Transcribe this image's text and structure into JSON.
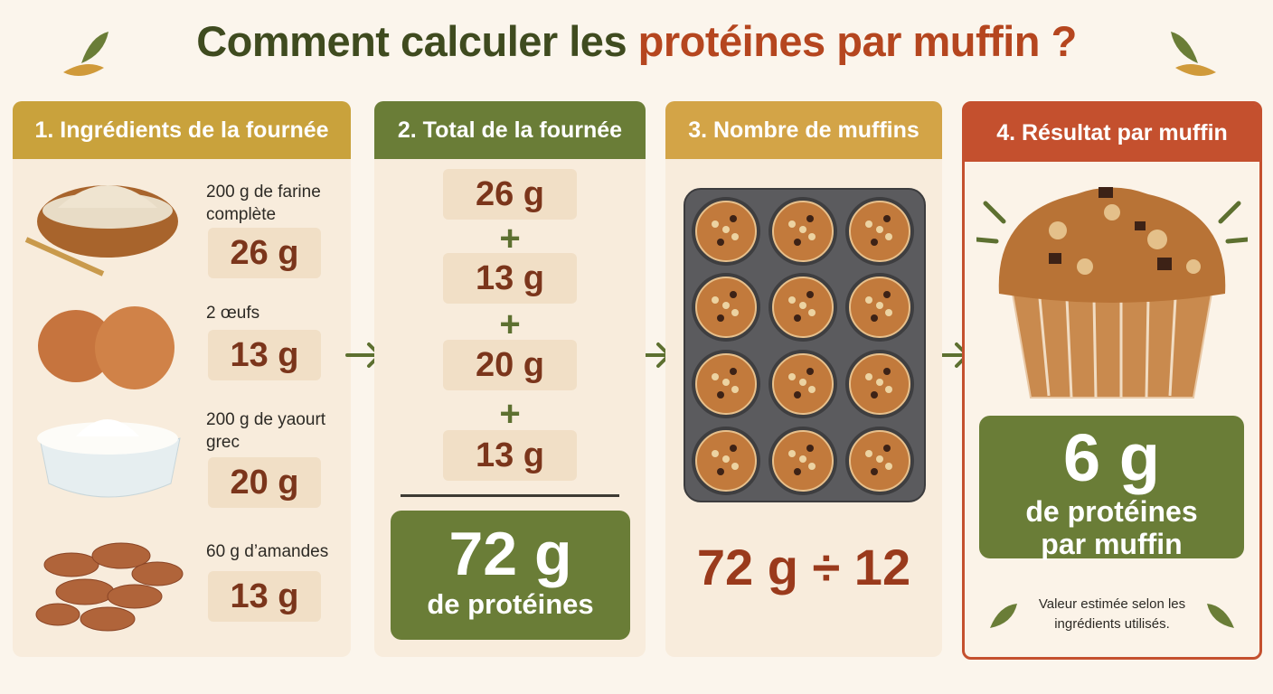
{
  "title": {
    "part1": "Comment calculer les",
    "part2": "protéines par muffin ?"
  },
  "panel1": {
    "header": "1. Ingrédients de la fournée",
    "items": [
      {
        "label": "200 g de farine complète",
        "protein": "26 g"
      },
      {
        "label": "2 œufs",
        "protein": "13 g"
      },
      {
        "label": "200 g de yaourt grec",
        "protein": "20 g"
      },
      {
        "label": "60 g d’amandes",
        "protein": "13 g"
      }
    ]
  },
  "panel2": {
    "header": "2. Total de la fournée",
    "terms": [
      "26 g",
      "13 g",
      "20 g",
      "13 g"
    ],
    "operator": "+",
    "total": "72 g",
    "total_caption": "de protéines"
  },
  "panel3": {
    "header": "3. Nombre de muffins",
    "formula": "72 g ÷ 12"
  },
  "panel4": {
    "header": "4. Résultat par muffin",
    "result": "6 g",
    "result_caption": "de protéines par muffin",
    "note": "Valeur estimée selon les ingrédients utilisés."
  }
}
